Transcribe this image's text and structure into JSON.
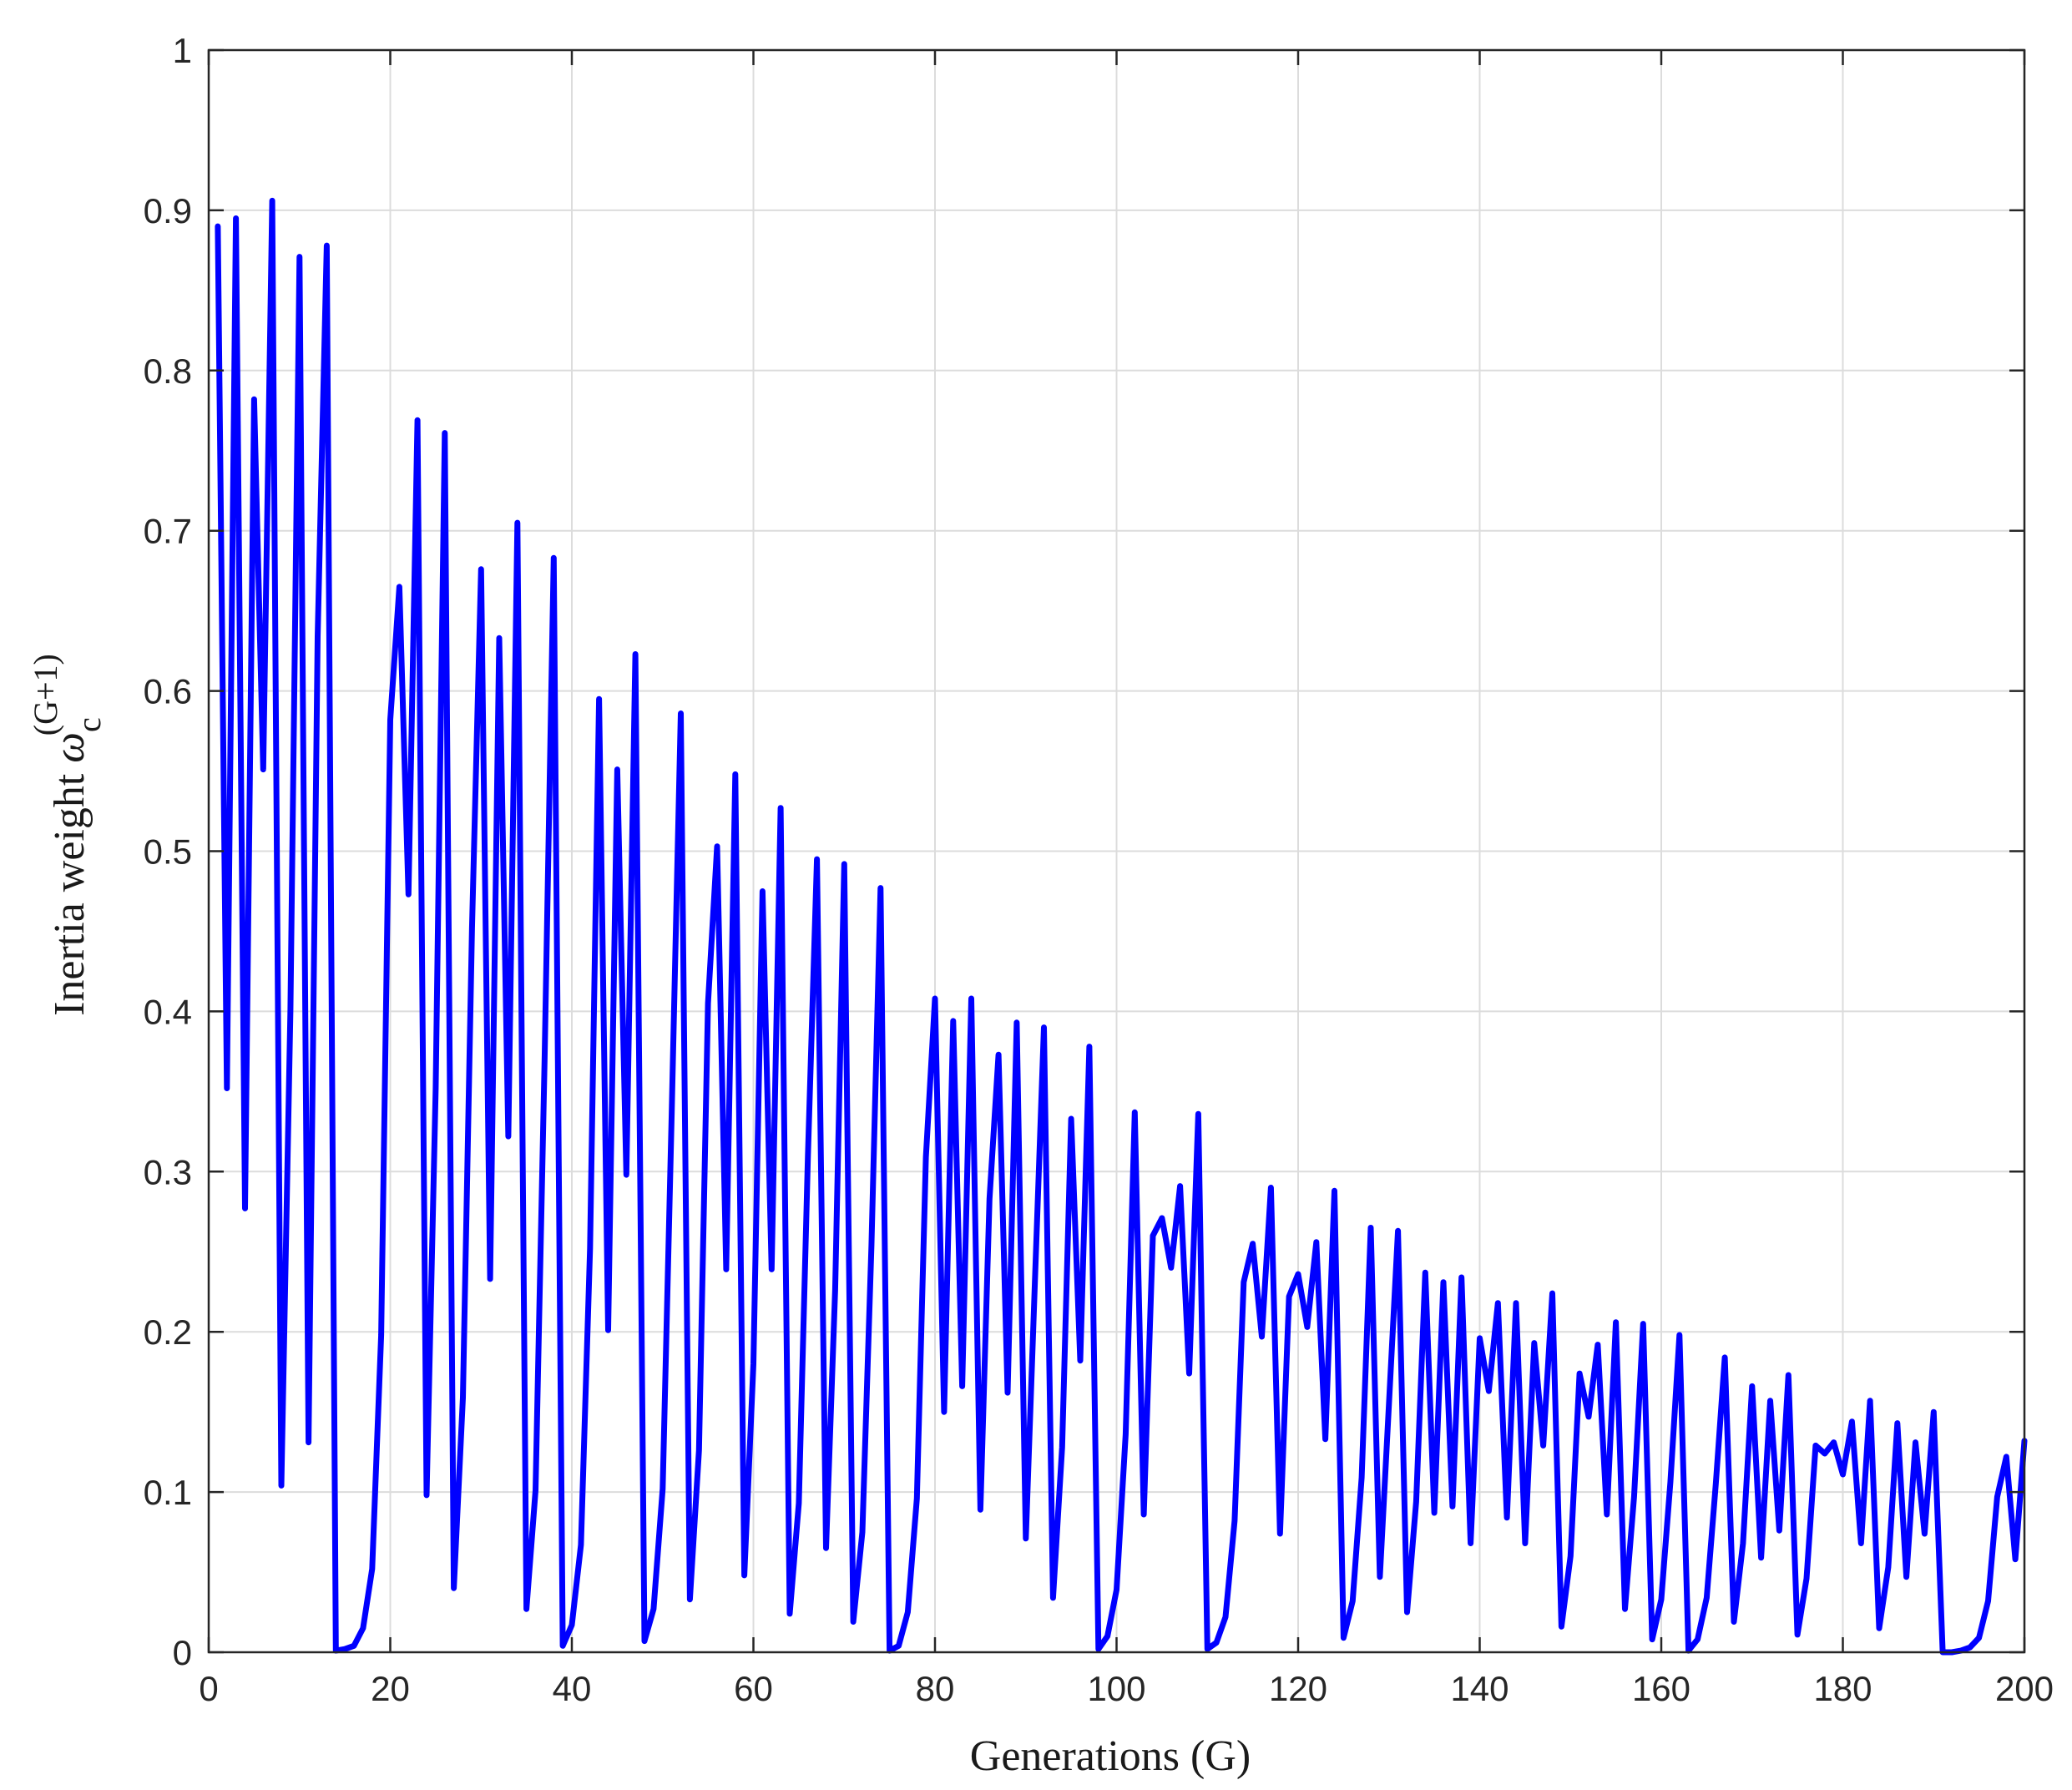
{
  "colors": {
    "line": "#0000ff",
    "grid": "#dcdcdc",
    "axis": "#262626",
    "background": "#ffffff"
  },
  "chart_data": {
    "type": "line",
    "title": "",
    "xlabel": "Generations (G)",
    "ylabel": {
      "prefix": "Inertia weight ",
      "symbol": "ω",
      "subscript": "c",
      "superscript": "(G+1)"
    },
    "xlim": [
      0,
      200
    ],
    "ylim": [
      0,
      1
    ],
    "xticks": [
      0,
      20,
      40,
      60,
      80,
      100,
      120,
      140,
      160,
      180,
      200
    ],
    "yticks": [
      0,
      0.1,
      0.2,
      0.3,
      0.4,
      0.5,
      0.6,
      0.7,
      0.8,
      0.9,
      1
    ],
    "grid": true,
    "legend": "none",
    "series": [
      {
        "x": [
          1,
          2,
          3,
          4,
          5,
          6,
          7,
          8,
          9,
          10,
          11,
          12,
          13,
          14,
          15,
          16,
          17,
          18,
          19,
          20,
          21,
          22,
          23,
          24,
          25,
          26,
          27,
          28,
          29,
          30,
          31,
          32,
          33,
          34,
          35,
          36,
          37,
          38,
          39,
          40,
          41,
          42,
          43,
          44,
          45,
          46,
          47,
          48,
          49,
          50,
          51,
          52,
          53,
          54,
          55,
          56,
          57,
          58,
          59,
          60,
          61,
          62,
          63,
          64,
          65,
          66,
          67,
          68,
          69,
          70,
          71,
          72,
          73,
          74,
          75,
          76,
          77,
          78,
          79,
          80,
          81,
          82,
          83,
          84,
          85,
          86,
          87,
          88,
          89,
          90,
          91,
          92,
          93,
          94,
          95,
          96,
          97,
          98,
          99,
          100,
          101,
          102,
          103,
          104,
          105,
          106,
          107,
          108,
          109,
          110,
          111,
          112,
          113,
          114,
          115,
          116,
          117,
          118,
          119,
          120,
          121,
          122,
          123,
          124,
          125,
          126,
          127,
          128,
          129,
          130,
          131,
          132,
          133,
          134,
          135,
          136,
          137,
          138,
          139,
          140,
          141,
          142,
          143,
          144,
          145,
          146,
          147,
          148,
          149,
          150,
          151,
          152,
          153,
          154,
          155,
          156,
          157,
          158,
          159,
          160,
          161,
          162,
          163,
          164,
          165,
          166,
          167,
          168,
          169,
          170,
          171,
          172,
          173,
          174,
          175,
          176,
          177,
          178,
          179,
          180,
          181,
          182,
          183,
          184,
          185,
          186,
          187,
          188,
          189,
          190,
          191,
          192,
          193,
          194,
          195,
          196,
          197,
          198,
          199,
          200
        ],
        "y": [
          0.89,
          0.352,
          0.895,
          0.277,
          0.782,
          0.551,
          0.906,
          0.104,
          0.401,
          0.871,
          0.131,
          0.634,
          0.878,
          0.001,
          0.002,
          0.004,
          0.015,
          0.052,
          0.198,
          0.582,
          0.665,
          0.473,
          0.769,
          0.098,
          0.352,
          0.761,
          0.04,
          0.159,
          0.452,
          0.676,
          0.233,
          0.633,
          0.322,
          0.705,
          0.027,
          0.101,
          0.371,
          0.683,
          0.004,
          0.017,
          0.067,
          0.252,
          0.595,
          0.201,
          0.551,
          0.298,
          0.623,
          0.007,
          0.027,
          0.102,
          0.336,
          0.586,
          0.033,
          0.126,
          0.405,
          0.503,
          0.239,
          0.548,
          0.048,
          0.18,
          0.475,
          0.239,
          0.527,
          0.024,
          0.093,
          0.31,
          0.495,
          0.065,
          0.226,
          0.492,
          0.019,
          0.075,
          0.254,
          0.477,
          0.001,
          0.004,
          0.025,
          0.096,
          0.309,
          0.408,
          0.15,
          0.394,
          0.166,
          0.408,
          0.089,
          0.283,
          0.373,
          0.162,
          0.393,
          0.071,
          0.23,
          0.39,
          0.034,
          0.128,
          0.333,
          0.182,
          0.378,
          0.002,
          0.01,
          0.039,
          0.136,
          0.337,
          0.086,
          0.26,
          0.271,
          0.24,
          0.291,
          0.174,
          0.336,
          0.002,
          0.006,
          0.022,
          0.082,
          0.231,
          0.255,
          0.197,
          0.29,
          0.074,
          0.222,
          0.236,
          0.203,
          0.256,
          0.133,
          0.288,
          0.009,
          0.032,
          0.109,
          0.265,
          0.047,
          0.155,
          0.263,
          0.025,
          0.094,
          0.237,
          0.087,
          0.231,
          0.091,
          0.234,
          0.068,
          0.196,
          0.163,
          0.218,
          0.084,
          0.218,
          0.068,
          0.193,
          0.129,
          0.224,
          0.016,
          0.06,
          0.174,
          0.147,
          0.192,
          0.086,
          0.206,
          0.027,
          0.097,
          0.205,
          0.008,
          0.033,
          0.106,
          0.198,
          0.001,
          0.008,
          0.034,
          0.105,
          0.184,
          0.019,
          0.068,
          0.166,
          0.059,
          0.157,
          0.076,
          0.173,
          0.011,
          0.046,
          0.129,
          0.124,
          0.131,
          0.111,
          0.144,
          0.068,
          0.157,
          0.015,
          0.053,
          0.143,
          0.047,
          0.131,
          0.074,
          0.15,
          0.0,
          0.0,
          0.001,
          0.003,
          0.009,
          0.032,
          0.097,
          0.122,
          0.058,
          0.132
        ]
      }
    ]
  }
}
